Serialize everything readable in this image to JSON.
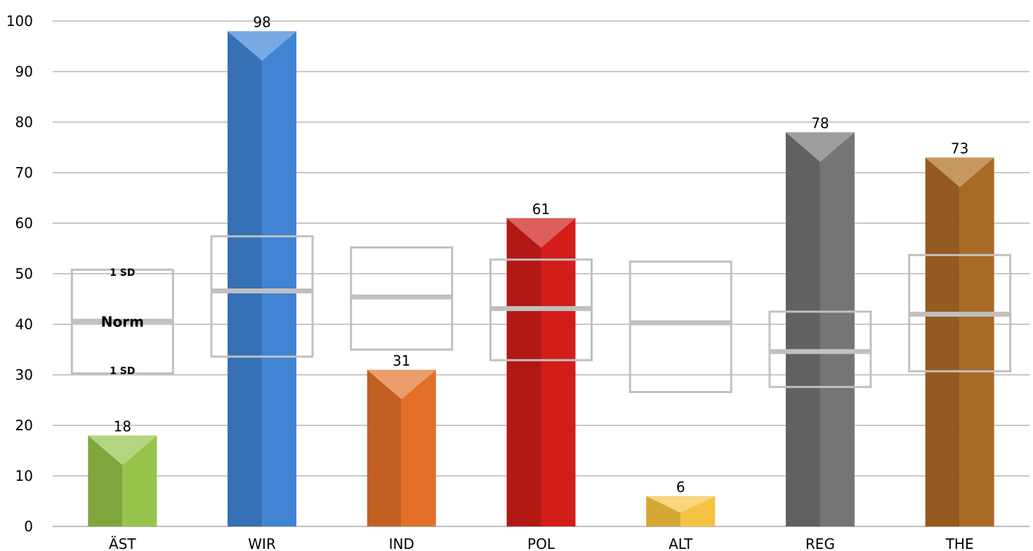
{
  "chart_data": {
    "type": "bar",
    "categories": [
      "ÄST",
      "WIR",
      "IND",
      "POL",
      "ALT",
      "REG",
      "THE"
    ],
    "values": [
      18,
      98,
      31,
      61,
      6,
      78,
      73
    ],
    "ylim": [
      0,
      100
    ],
    "yticks": [
      0,
      10,
      20,
      30,
      40,
      50,
      60,
      70,
      80,
      90,
      100
    ],
    "grid": true,
    "bar_colors": [
      {
        "dark": "#7ea63c",
        "light": "#97c44a",
        "top": "#b4d580"
      },
      {
        "dark": "#3670b5",
        "light": "#4184d4",
        "top": "#79a9e2"
      },
      {
        "dark": "#c25e22",
        "light": "#e27028",
        "top": "#eb9d6c"
      },
      {
        "dark": "#b21814",
        "light": "#d21d18",
        "top": "#dd5e5b"
      },
      {
        "dark": "#d4a634",
        "light": "#f5c243",
        "top": "#f8d57e"
      },
      {
        "dark": "#616161",
        "light": "#757575",
        "top": "#9e9e9e"
      },
      {
        "dark": "#945a20",
        "light": "#a96a26",
        "top": "#c6975f"
      }
    ],
    "norm_bands": [
      {
        "category": "ÄST",
        "low": 30.3,
        "norm": 40.6,
        "high": 50.8
      },
      {
        "category": "WIR",
        "low": 33.6,
        "norm": 46.6,
        "high": 57.4
      },
      {
        "category": "IND",
        "low": 35.0,
        "norm": 45.4,
        "high": 55.2
      },
      {
        "category": "POL",
        "low": 32.9,
        "norm": 43.1,
        "high": 52.8
      },
      {
        "category": "ALT",
        "low": 26.6,
        "norm": 40.3,
        "high": 52.4
      },
      {
        "category": "REG",
        "low": 27.6,
        "norm": 34.6,
        "high": 42.5
      },
      {
        "category": "THE",
        "low": 30.7,
        "norm": 42.0,
        "high": 53.7
      }
    ],
    "band_labels": {
      "upper": "1 SD",
      "norm": "Norm",
      "lower": "1 SD"
    },
    "band_color": "#c0c0c0"
  }
}
